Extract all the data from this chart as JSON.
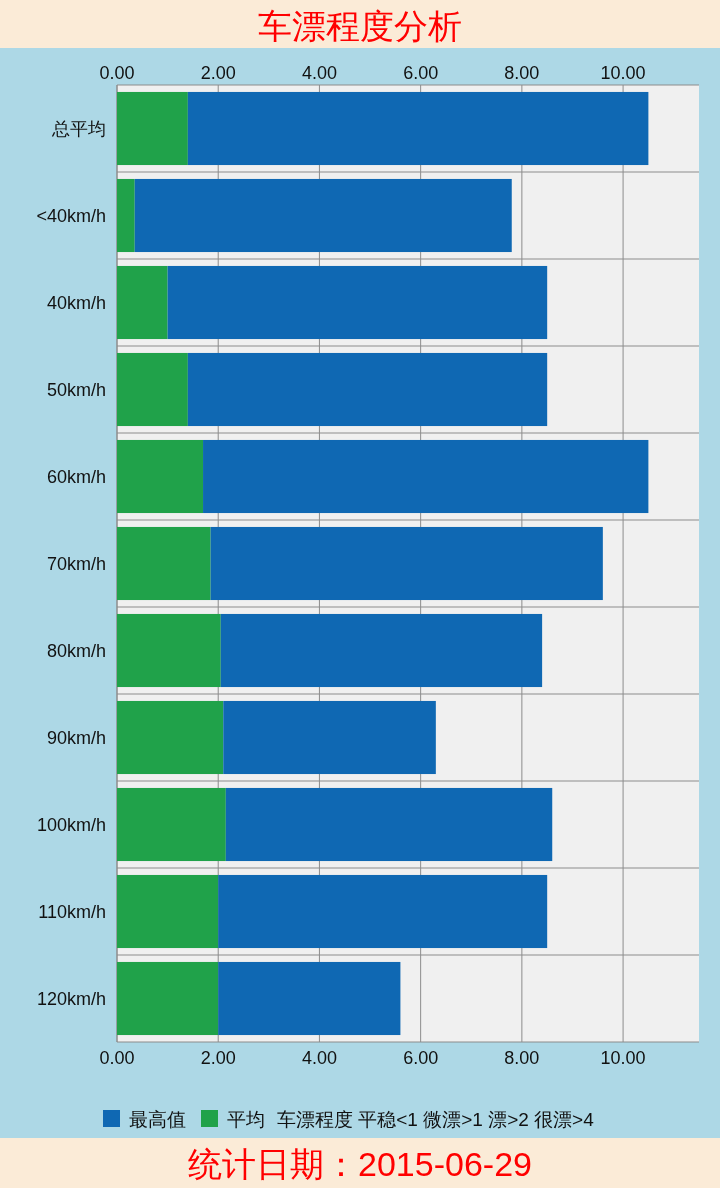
{
  "chart_data": {
    "type": "bar",
    "title": "车漂程度分析",
    "orientation": "horizontal",
    "stacked": true,
    "categories": [
      "总平均",
      "<40km/h",
      "40km/h",
      "50km/h",
      "60km/h",
      "70km/h",
      "80km/h",
      "90km/h",
      "100km/h",
      "110km/h",
      "120km/h"
    ],
    "series": [
      {
        "name": "平均",
        "color": "#20a24a",
        "values": [
          1.4,
          0.35,
          1.0,
          1.4,
          1.7,
          1.85,
          2.05,
          2.1,
          2.15,
          2.0,
          2.0
        ]
      },
      {
        "name": "最高值",
        "color": "#0f68b3",
        "values": [
          9.1,
          7.45,
          7.5,
          7.1,
          8.8,
          7.75,
          6.35,
          4.2,
          6.45,
          6.5,
          3.6
        ]
      }
    ],
    "xlim": [
      0,
      11.5
    ],
    "xticks": [
      {
        "value": 0,
        "label": "0.00"
      },
      {
        "value": 2,
        "label": "2.00"
      },
      {
        "value": 4,
        "label": "4.00"
      },
      {
        "value": 6,
        "label": "6.00"
      },
      {
        "value": 8,
        "label": "8.00"
      },
      {
        "value": 10,
        "label": "10.00"
      }
    ],
    "x2lim": [
      0,
      11.5
    ],
    "x2ticks": [
      {
        "value": 0,
        "label": "0.00"
      },
      {
        "value": 2,
        "label": "2.00"
      },
      {
        "value": 4,
        "label": "4.00"
      },
      {
        "value": 6,
        "label": "6.00"
      },
      {
        "value": 8,
        "label": "8.00"
      },
      {
        "value": 10,
        "label": "10.00"
      }
    ],
    "grid": true,
    "legend": "bottom",
    "annotations": [
      "车漂程度 平稳<1 微漂>1 漂>2 很漂>4",
      "统计日期：2015-06-29"
    ]
  }
}
